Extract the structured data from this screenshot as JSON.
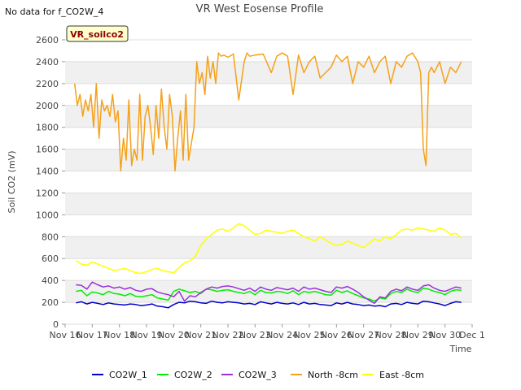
{
  "header": {
    "title": "VR West Eosense Profile",
    "no_data_note": "No data for f_CO2W_4",
    "site_badge": "VR_soilco2"
  },
  "chart_data": {
    "type": "line",
    "title": "VR West Eosense Profile",
    "xlabel": "Time",
    "ylabel": "Soil CO2 (mV)",
    "xlim": [
      "Nov 16",
      "Dec 1"
    ],
    "ylim": [
      0,
      2600
    ],
    "y_ticks": [
      0,
      200,
      400,
      600,
      800,
      1000,
      1200,
      1400,
      1600,
      1800,
      2000,
      2200,
      2400,
      2600
    ],
    "x_ticks": [
      "Nov 16",
      "Nov 17",
      "Nov 18",
      "Nov 19",
      "Nov 20",
      "Nov 21",
      "Nov 22",
      "Nov 23",
      "Nov 24",
      "Nov 25",
      "Nov 26",
      "Nov 27",
      "Nov 28",
      "Nov 29",
      "Nov 30",
      "Dec 1"
    ],
    "grid": "horizontal bands",
    "legend_position": "bottom",
    "x_unit": "days since Nov 16",
    "series": [
      {
        "name": "CO2W_1",
        "color": "#0000cc",
        "x": [
          0.4,
          0.6,
          0.8,
          1.0,
          1.2,
          1.4,
          1.6,
          1.8,
          2.0,
          2.2,
          2.4,
          2.6,
          2.8,
          3.0,
          3.2,
          3.4,
          3.6,
          3.8,
          4.0,
          4.2,
          4.4,
          4.6,
          4.8,
          5.0,
          5.2,
          5.4,
          5.6,
          5.8,
          6.0,
          6.2,
          6.4,
          6.6,
          6.8,
          7.0,
          7.2,
          7.4,
          7.6,
          7.8,
          8.0,
          8.2,
          8.4,
          8.6,
          8.8,
          9.0,
          9.2,
          9.4,
          9.6,
          9.8,
          10.0,
          10.2,
          10.4,
          10.6,
          10.8,
          11.0,
          11.2,
          11.4,
          11.6,
          11.8,
          12.0,
          12.2,
          12.4,
          12.6,
          12.8,
          13.0,
          13.2,
          13.4,
          13.6,
          13.8,
          14.0,
          14.2,
          14.4,
          14.6
        ],
        "y": [
          195,
          205,
          185,
          200,
          190,
          180,
          195,
          185,
          180,
          175,
          185,
          180,
          170,
          175,
          185,
          165,
          160,
          150,
          180,
          200,
          195,
          210,
          205,
          195,
          190,
          210,
          200,
          195,
          205,
          200,
          195,
          185,
          190,
          180,
          205,
          195,
          185,
          200,
          190,
          185,
          195,
          180,
          200,
          185,
          190,
          180,
          175,
          170,
          195,
          185,
          200,
          185,
          180,
          170,
          175,
          165,
          170,
          160,
          185,
          190,
          180,
          200,
          190,
          185,
          210,
          205,
          195,
          185,
          170,
          190,
          205,
          200
        ]
      },
      {
        "name": "CO2W_2",
        "color": "#00ee00",
        "x": [
          0.4,
          0.6,
          0.8,
          1.0,
          1.2,
          1.4,
          1.6,
          1.8,
          2.0,
          2.2,
          2.4,
          2.6,
          2.8,
          3.0,
          3.2,
          3.4,
          3.6,
          3.8,
          4.0,
          4.2,
          4.4,
          4.6,
          4.8,
          5.0,
          5.2,
          5.4,
          5.6,
          5.8,
          6.0,
          6.2,
          6.4,
          6.6,
          6.8,
          7.0,
          7.2,
          7.4,
          7.6,
          7.8,
          8.0,
          8.2,
          8.4,
          8.6,
          8.8,
          9.0,
          9.2,
          9.4,
          9.6,
          9.8,
          10.0,
          10.2,
          10.4,
          10.6,
          10.8,
          11.0,
          11.2,
          11.4,
          11.6,
          11.8,
          12.0,
          12.2,
          12.4,
          12.6,
          12.8,
          13.0,
          13.2,
          13.4,
          13.6,
          13.8,
          14.0,
          14.2,
          14.4,
          14.6
        ],
        "y": [
          300,
          310,
          260,
          295,
          285,
          270,
          300,
          280,
          275,
          260,
          280,
          255,
          250,
          260,
          270,
          240,
          230,
          220,
          300,
          320,
          305,
          290,
          300,
          280,
          320,
          315,
          300,
          310,
          315,
          300,
          290,
          280,
          300,
          270,
          310,
          290,
          285,
          300,
          295,
          280,
          305,
          270,
          300,
          290,
          300,
          285,
          270,
          265,
          310,
          290,
          305,
          280,
          260,
          240,
          230,
          210,
          240,
          230,
          280,
          300,
          290,
          320,
          300,
          290,
          330,
          320,
          300,
          290,
          270,
          300,
          315,
          310
        ]
      },
      {
        "name": "CO2W_3",
        "color": "#9b30d9",
        "x": [
          0.4,
          0.6,
          0.8,
          1.0,
          1.2,
          1.4,
          1.6,
          1.8,
          2.0,
          2.2,
          2.4,
          2.6,
          2.8,
          3.0,
          3.2,
          3.4,
          3.6,
          3.8,
          4.0,
          4.2,
          4.4,
          4.6,
          4.8,
          5.0,
          5.2,
          5.4,
          5.6,
          5.8,
          6.0,
          6.2,
          6.4,
          6.6,
          6.8,
          7.0,
          7.2,
          7.4,
          7.6,
          7.8,
          8.0,
          8.2,
          8.4,
          8.6,
          8.8,
          9.0,
          9.2,
          9.4,
          9.6,
          9.8,
          10.0,
          10.2,
          10.4,
          10.6,
          10.8,
          11.0,
          11.2,
          11.4,
          11.6,
          11.8,
          12.0,
          12.2,
          12.4,
          12.6,
          12.8,
          13.0,
          13.2,
          13.4,
          13.6,
          13.8,
          14.0,
          14.2,
          14.4,
          14.6
        ],
        "y": [
          360,
          355,
          320,
          385,
          360,
          340,
          350,
          330,
          340,
          320,
          335,
          310,
          300,
          320,
          325,
          295,
          280,
          270,
          250,
          300,
          210,
          260,
          250,
          290,
          320,
          340,
          330,
          345,
          350,
          340,
          325,
          310,
          330,
          300,
          340,
          320,
          310,
          335,
          325,
          315,
          330,
          300,
          340,
          320,
          330,
          315,
          300,
          290,
          340,
          330,
          345,
          320,
          290,
          250,
          220,
          190,
          250,
          240,
          300,
          320,
          305,
          340,
          320,
          310,
          350,
          360,
          330,
          310,
          300,
          320,
          340,
          330
        ]
      },
      {
        "name": "North -8cm",
        "color": "#f5a11a",
        "x": [
          0.35,
          0.45,
          0.55,
          0.65,
          0.75,
          0.85,
          0.95,
          1.05,
          1.15,
          1.25,
          1.35,
          1.45,
          1.55,
          1.65,
          1.75,
          1.85,
          1.95,
          2.05,
          2.15,
          2.25,
          2.35,
          2.45,
          2.55,
          2.65,
          2.75,
          2.85,
          2.95,
          3.05,
          3.15,
          3.25,
          3.35,
          3.45,
          3.55,
          3.65,
          3.75,
          3.85,
          3.95,
          4.05,
          4.15,
          4.25,
          4.35,
          4.45,
          4.55,
          4.65,
          4.75,
          4.85,
          4.95,
          5.05,
          5.15,
          5.25,
          5.35,
          5.45,
          5.55,
          5.65,
          5.75,
          5.85,
          6.0,
          6.2,
          6.4,
          6.6,
          6.7,
          6.8,
          7.0,
          7.3,
          7.6,
          7.8,
          8.0,
          8.2,
          8.4,
          8.6,
          8.8,
          9.0,
          9.2,
          9.4,
          9.6,
          9.8,
          10.0,
          10.2,
          10.4,
          10.6,
          10.8,
          11.0,
          11.2,
          11.4,
          11.6,
          11.8,
          12.0,
          12.2,
          12.4,
          12.6,
          12.8,
          13.0,
          13.1,
          13.2,
          13.3,
          13.4,
          13.5,
          13.6,
          13.8,
          14.0,
          14.2,
          14.4,
          14.6
        ],
        "y": [
          2200,
          2000,
          2100,
          1900,
          2050,
          1950,
          2100,
          1800,
          2200,
          1700,
          2050,
          1950,
          2000,
          1900,
          2100,
          1850,
          1950,
          1400,
          1700,
          1500,
          2050,
          1450,
          1600,
          1500,
          2100,
          1500,
          1900,
          2000,
          1800,
          1550,
          2000,
          1700,
          2150,
          1800,
          1600,
          2100,
          1900,
          1400,
          1700,
          1950,
          1500,
          2100,
          1500,
          1650,
          1800,
          2400,
          2200,
          2300,
          2100,
          2450,
          2250,
          2400,
          2200,
          2480,
          2450,
          2460,
          2440,
          2470,
          2050,
          2400,
          2480,
          2450,
          2460,
          2470,
          2300,
          2450,
          2480,
          2450,
          2100,
          2460,
          2300,
          2400,
          2450,
          2250,
          2300,
          2350,
          2460,
          2400,
          2450,
          2200,
          2400,
          2350,
          2450,
          2300,
          2400,
          2450,
          2200,
          2400,
          2350,
          2450,
          2480,
          2400,
          2300,
          1600,
          1450,
          2300,
          2350,
          2300,
          2400,
          2200,
          2350,
          2300,
          2400
        ]
      },
      {
        "name": "East -8cm",
        "color": "#ffff00",
        "x": [
          0.4,
          0.6,
          0.8,
          1.0,
          1.2,
          1.4,
          1.6,
          1.8,
          2.0,
          2.2,
          2.4,
          2.6,
          2.8,
          3.0,
          3.2,
          3.4,
          3.6,
          3.8,
          4.0,
          4.2,
          4.4,
          4.6,
          4.8,
          5.0,
          5.2,
          5.4,
          5.6,
          5.8,
          6.0,
          6.2,
          6.4,
          6.6,
          6.8,
          7.0,
          7.2,
          7.4,
          7.6,
          7.8,
          8.0,
          8.2,
          8.4,
          8.6,
          8.8,
          9.0,
          9.2,
          9.4,
          9.6,
          9.8,
          10.0,
          10.2,
          10.4,
          10.6,
          10.8,
          11.0,
          11.2,
          11.4,
          11.6,
          11.8,
          12.0,
          12.2,
          12.4,
          12.6,
          12.8,
          13.0,
          13.2,
          13.4,
          13.6,
          13.8,
          14.0,
          14.2,
          14.4,
          14.6
        ],
        "y": [
          580,
          550,
          540,
          570,
          550,
          530,
          510,
          490,
          500,
          510,
          490,
          470,
          465,
          480,
          500,
          510,
          490,
          480,
          470,
          520,
          560,
          580,
          620,
          720,
          780,
          820,
          860,
          870,
          850,
          880,
          920,
          900,
          860,
          820,
          830,
          860,
          850,
          840,
          830,
          850,
          860,
          830,
          800,
          780,
          760,
          800,
          770,
          740,
          720,
          730,
          760,
          740,
          720,
          700,
          740,
          780,
          760,
          800,
          780,
          820,
          860,
          870,
          860,
          880,
          870,
          860,
          850,
          880,
          860,
          820,
          830,
          790
        ]
      }
    ]
  }
}
